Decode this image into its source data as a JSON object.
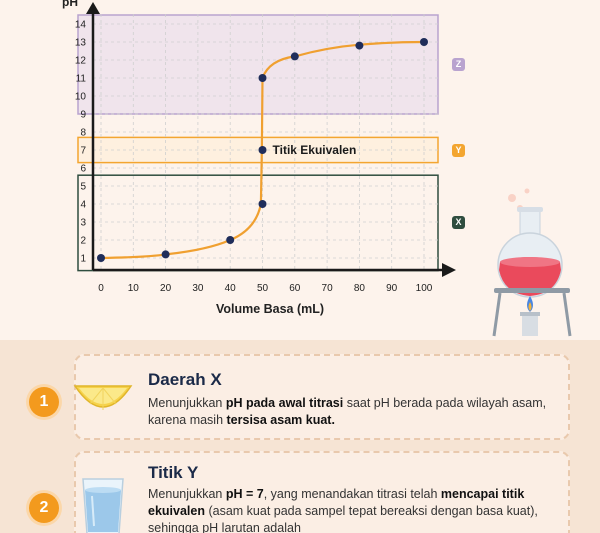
{
  "chart_data": {
    "type": "line",
    "title": "",
    "xlabel": "Volume Basa (mL)",
    "ylabel": "pH",
    "xlim": [
      0,
      100
    ],
    "ylim": [
      0,
      14
    ],
    "x_ticks": [
      0,
      10,
      20,
      30,
      40,
      50,
      60,
      70,
      80,
      90,
      100
    ],
    "y_ticks": [
      1,
      2,
      3,
      4,
      5,
      6,
      7,
      8,
      9,
      10,
      11,
      12,
      13,
      14
    ],
    "grid": true,
    "series": [
      {
        "name": "",
        "x": [
          0,
          20,
          40,
          50,
          50,
          50,
          60,
          80,
          100
        ],
        "y": [
          1,
          1.2,
          2,
          4,
          7,
          11,
          12.2,
          12.8,
          13
        ]
      }
    ],
    "annotations": [
      {
        "text": "Titik Ekuivalen",
        "x": 50,
        "y": 7
      }
    ],
    "bands": [
      {
        "label": "Z",
        "y_from": 9,
        "y_to": 14.5,
        "color": "#b9a3cf"
      },
      {
        "label": "Y",
        "y_from": 6.3,
        "y_to": 7.7,
        "color": "#f3a530"
      },
      {
        "label": "X",
        "y_from": 0.3,
        "y_to": 5.6,
        "color": "#2f4d3f"
      }
    ],
    "line_color": "#f0a030",
    "point_color": "#1f2d5a"
  },
  "cards": [
    {
      "number": "1",
      "title": "Daerah X",
      "text_html": "Menunjukkan <b>pH pada awal titrasi</b> saat pH berada pada wilayah asam, karena masih <b>tersisa asam kuat.</b>"
    },
    {
      "number": "2",
      "title": "Titik Y",
      "text_html": "Menunjukkan <b>pH = 7</b>, yang menandakan titrasi telah <b>mencapai titik ekuivalen</b> (asam kuat pada sampel tepat bereaksi dengan basa kuat), sehingga pH larutan adalah"
    }
  ],
  "icons": {
    "lemon": "lemon-icon",
    "water": "water-glass-icon",
    "flask": "flask-burner-icon"
  }
}
